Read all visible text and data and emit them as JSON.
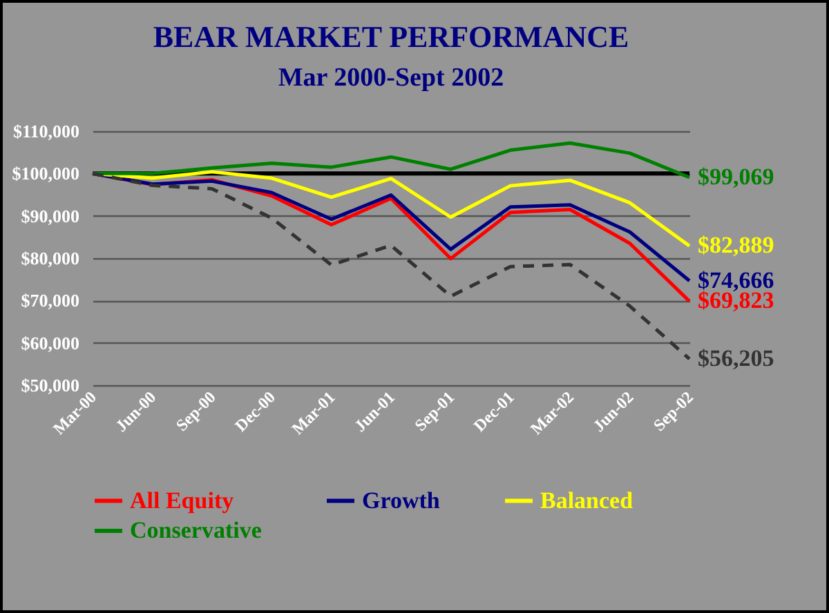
{
  "chart_data": {
    "type": "line",
    "title": "BEAR MARKET PERFORMANCE",
    "subtitle": "Mar 2000-Sept 2002",
    "categories": [
      "Mar-00",
      "Jun-00",
      "Sep-00",
      "Dec-00",
      "Mar-01",
      "Jun-01",
      "Sep-01",
      "Dec-01",
      "Mar-02",
      "Jun-02",
      "Sep-02"
    ],
    "series": [
      {
        "name": "All Equity",
        "color": "#ff0000",
        "values": [
          100000,
          97400,
          98500,
          94700,
          87900,
          94100,
          79900,
          90800,
          91500,
          83500,
          69823
        ]
      },
      {
        "name": "Growth",
        "color": "#000080",
        "values": [
          100000,
          97500,
          98200,
          95500,
          89200,
          94900,
          82100,
          92100,
          92600,
          86200,
          74666
        ]
      },
      {
        "name": "Balanced",
        "color": "#ffff00",
        "values": [
          100000,
          98900,
          100400,
          98900,
          94400,
          98800,
          89700,
          97100,
          98400,
          93100,
          82889
        ]
      },
      {
        "name": "Conservative",
        "color": "#008000",
        "values": [
          100000,
          100000,
          101300,
          102400,
          101500,
          103900,
          101000,
          105500,
          107200,
          104800,
          99069
        ]
      },
      {
        "color": "#333333",
        "line_style": "dashed",
        "values": [
          100000,
          97200,
          96400,
          89500,
          78400,
          83000,
          71000,
          78000,
          78500,
          68700,
          56205
        ]
      }
    ],
    "annotations": [
      {
        "text": "$69,823",
        "x": "Sep-02",
        "y": 69823
      },
      {
        "text": "$74,666",
        "x": "Sep-02",
        "y": 74666
      },
      {
        "text": "$82,889",
        "x": "Sep-02",
        "y": 82889
      },
      {
        "text": "$99,069",
        "x": "Sep-02",
        "y": 99069
      },
      {
        "text": "$56,205",
        "x": "Sep-02",
        "y": 56205
      }
    ],
    "ref_lines": [
      {
        "axis": "y",
        "value": 100000,
        "color": "#000000"
      }
    ],
    "ylim": [
      50000,
      110000
    ],
    "yticks": [
      {
        "value": 50000,
        "label": "$50,000"
      },
      {
        "value": 60000,
        "label": "$60,000"
      },
      {
        "value": 70000,
        "label": "$70,000"
      },
      {
        "value": 80000,
        "label": "$80,000"
      },
      {
        "value": 90000,
        "label": "$90,000"
      },
      {
        "value": 100000,
        "label": "$100,000"
      },
      {
        "value": 110000,
        "label": "$110,000"
      }
    ],
    "grid": "y",
    "legend": "bottom",
    "line_style": "solid"
  }
}
